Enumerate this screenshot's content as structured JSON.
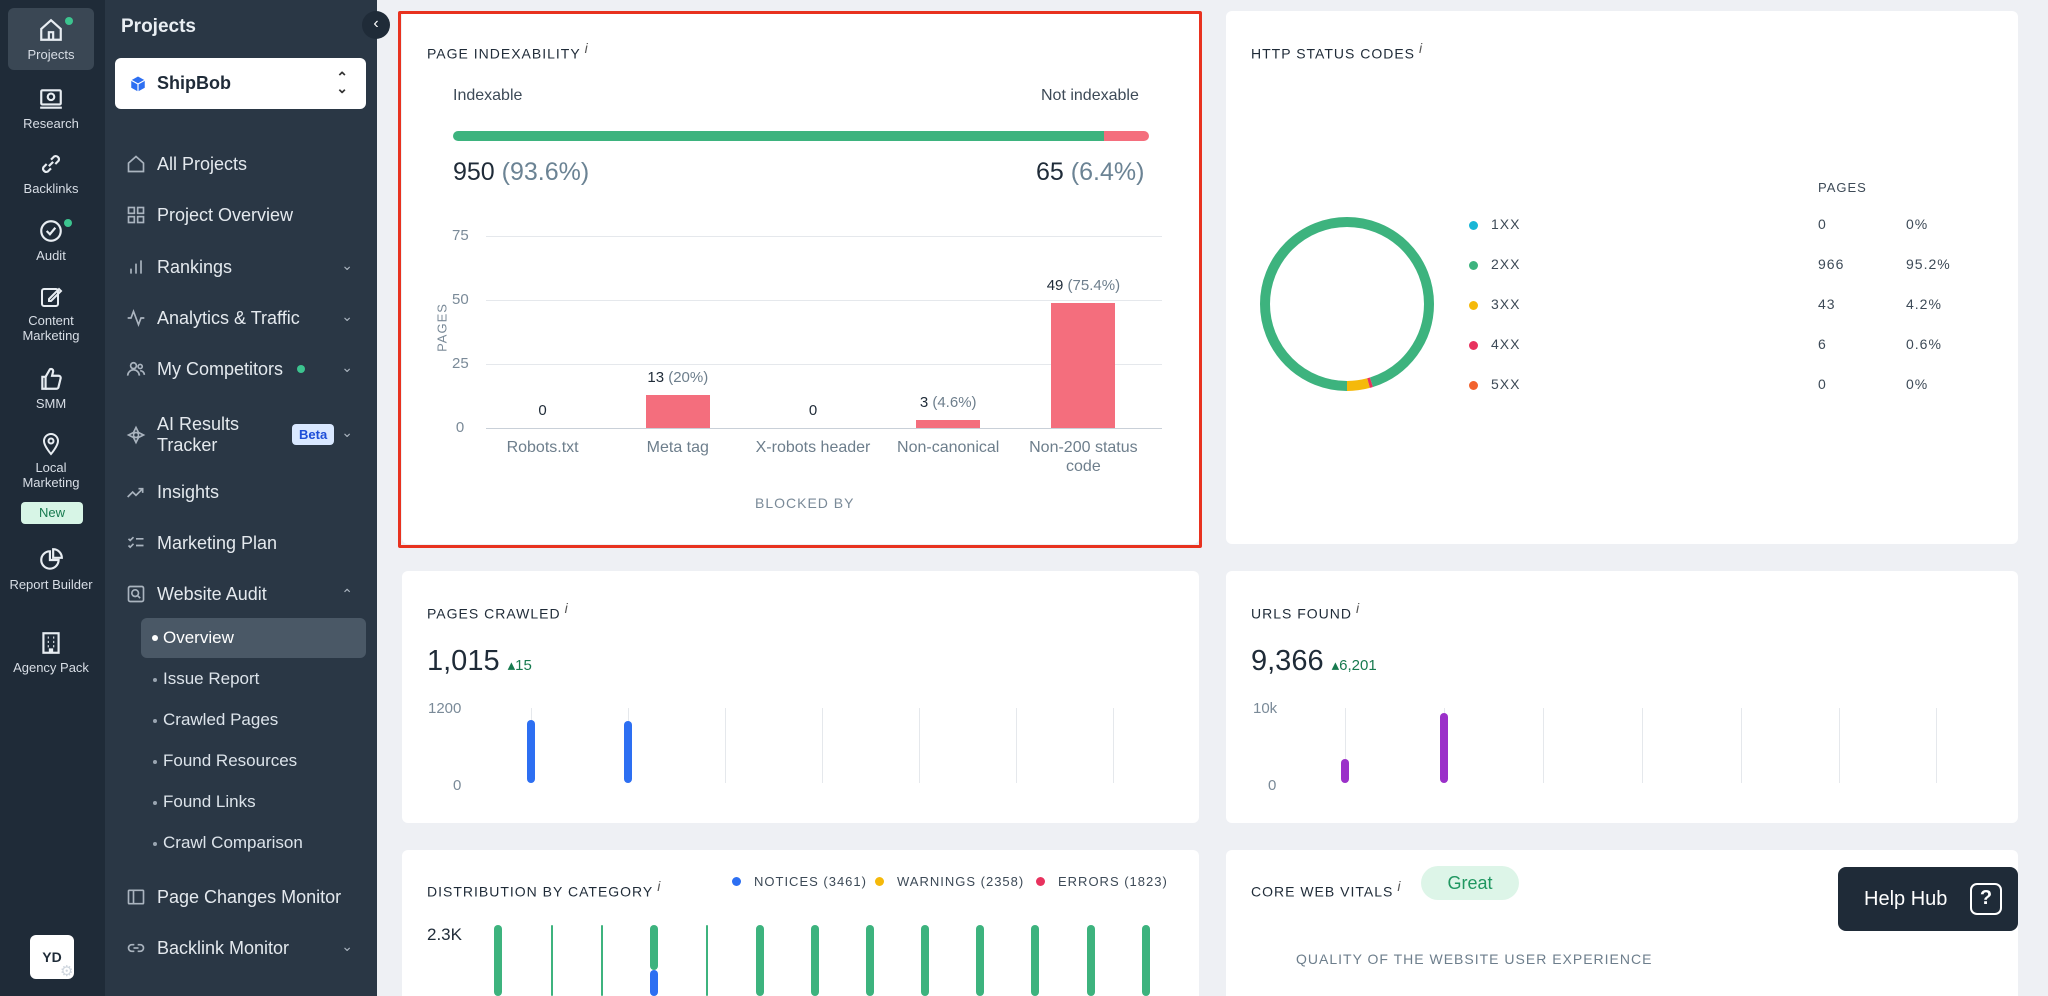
{
  "rail": {
    "items": [
      {
        "label": "Projects",
        "icon": "home-icon"
      },
      {
        "label": "Research",
        "icon": "research-icon"
      },
      {
        "label": "Backlinks",
        "icon": "link-icon"
      },
      {
        "label": "Audit",
        "icon": "check-circle-icon"
      },
      {
        "label": "Content Marketing",
        "icon": "edit-icon"
      },
      {
        "label": "SMM",
        "icon": "thumbs-up-icon"
      },
      {
        "label": "Local Marketing",
        "icon": "map-pin-icon"
      },
      {
        "label": "Report Builder",
        "icon": "pie-chart-icon"
      },
      {
        "label": "Agency Pack",
        "icon": "building-icon"
      }
    ],
    "new_badge": "New",
    "avatar": "YD"
  },
  "sidebar": {
    "title": "Projects",
    "project": "ShipBob",
    "nav": [
      {
        "label": "All Projects"
      },
      {
        "label": "Project Overview"
      },
      {
        "label": "Rankings"
      },
      {
        "label": "Analytics & Traffic"
      },
      {
        "label": "My Competitors"
      },
      {
        "label": "AI Results Tracker"
      },
      {
        "label": "Insights"
      },
      {
        "label": "Marketing Plan"
      },
      {
        "label": "Website Audit"
      }
    ],
    "beta": "Beta",
    "audit_sub": [
      "Overview",
      "Issue Report",
      "Crawled Pages",
      "Found Resources",
      "Found Links",
      "Crawl Comparison"
    ],
    "nav_bottom": [
      {
        "label": "Page Changes Monitor"
      },
      {
        "label": "Backlink Monitor"
      }
    ]
  },
  "indexability": {
    "title": "PAGE INDEXABILITY",
    "info": "i",
    "left_label": "Indexable",
    "right_label": "Not indexable",
    "indexable_count": "950",
    "indexable_pct": "(93.6%)",
    "not_indexable_count": "65",
    "not_indexable_pct": "(6.4%)",
    "indexable_share": 0.936,
    "colors": {
      "indexable": "#3db37e",
      "not_indexable": "#f46e7d"
    }
  },
  "chart_data": {
    "type": "bar",
    "title": "",
    "xlabel": "BLOCKED BY",
    "ylabel": "PAGES",
    "ylim": [
      0,
      75
    ],
    "yticks": [
      "75",
      "50",
      "25",
      "0"
    ],
    "categories": [
      "Robots.txt",
      "Meta tag",
      "X-robots header",
      "Non-canonical",
      "Non-200 status code"
    ],
    "values": [
      0,
      13,
      0,
      3,
      49
    ],
    "value_labels": [
      {
        "count": "0",
        "pct": ""
      },
      {
        "count": "13",
        "pct": "(20%)"
      },
      {
        "count": "0",
        "pct": ""
      },
      {
        "count": "3",
        "pct": "(4.6%)"
      },
      {
        "count": "49",
        "pct": "(75.4%)"
      }
    ]
  },
  "http": {
    "title": "HTTP STATUS CODES",
    "info": "i",
    "pages_header": "PAGES",
    "rows": [
      {
        "code": "1XX",
        "pages": "0",
        "pct": "0%",
        "value": 0,
        "color": "#19b6d6"
      },
      {
        "code": "2XX",
        "pages": "966",
        "pct": "95.2%",
        "value": 966,
        "color": "#3db37e"
      },
      {
        "code": "3XX",
        "pages": "43",
        "pct": "4.2%",
        "value": 43,
        "color": "#f5b90a"
      },
      {
        "code": "4XX",
        "pages": "6",
        "pct": "0.6%",
        "value": 6,
        "color": "#e8325e"
      },
      {
        "code": "5XX",
        "pages": "0",
        "pct": "0%",
        "value": 0,
        "color": "#f2622e"
      }
    ]
  },
  "pages_crawled": {
    "title": "PAGES CRAWLED",
    "info": "i",
    "value": "1,015",
    "delta": "15",
    "y_top": "1200",
    "y_bottom": "0",
    "ymax": 1200,
    "bars": [
      1015,
      1000
    ],
    "color": "#2d6ff2"
  },
  "urls_found": {
    "title": "URLS FOUND",
    "info": "i",
    "value": "9,366",
    "delta": "6,201",
    "y_top": "10k",
    "y_bottom": "0",
    "ymax": 10000,
    "bars": [
      3165,
      9366
    ],
    "color": "#9b30c9"
  },
  "distribution": {
    "title": "DISTRIBUTION BY CATEGORY",
    "info": "i",
    "y_top": "2.3K",
    "legend": [
      {
        "label": "NOTICES (3461)",
        "color": "#2d6ff2"
      },
      {
        "label": "WARNINGS (2358)",
        "color": "#f5b90a"
      },
      {
        "label": "ERRORS (1823)",
        "color": "#e8325e"
      }
    ],
    "bar_color": "#3db37e"
  },
  "cwv": {
    "title": "CORE WEB VITALS",
    "info": "i",
    "badge": "Great",
    "subtitle": "QUALITY OF THE WEBSITE USER EXPERIENCE"
  },
  "help_hub": {
    "label": "Help Hub",
    "icon": "question-icon"
  }
}
